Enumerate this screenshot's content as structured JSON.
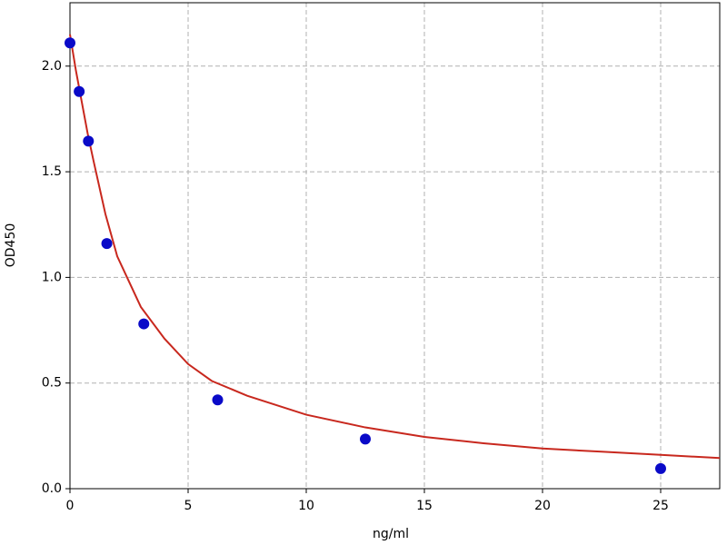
{
  "chart_data": {
    "type": "scatter",
    "x_label": "ng/ml",
    "y_label": "OD450",
    "series": [
      {
        "type": "scatter",
        "color": "#0a0ac8",
        "x": [
          0,
          0.39,
          0.78,
          1.56,
          3.125,
          6.25,
          12.5,
          25
        ],
        "values": [
          2.11,
          1.88,
          1.645,
          1.16,
          0.78,
          0.42,
          0.235,
          0.095
        ]
      },
      {
        "type": "line",
        "color": "#c8281e",
        "x": [
          0,
          0.25,
          0.5,
          0.75,
          1,
          1.5,
          2,
          2.5,
          3,
          4,
          5,
          6,
          7.5,
          10,
          12.5,
          15,
          17.5,
          20,
          22.5,
          25,
          27.5
        ],
        "values": [
          2.15,
          1.98,
          1.83,
          1.68,
          1.55,
          1.3,
          1.1,
          0.98,
          0.86,
          0.71,
          0.59,
          0.51,
          0.44,
          0.35,
          0.29,
          0.245,
          0.215,
          0.19,
          0.175,
          0.16,
          0.145
        ]
      }
    ],
    "xlim": [
      0,
      27.5
    ],
    "ylim": [
      0,
      2.3
    ],
    "xticks": [
      0,
      5,
      10,
      15,
      20,
      25
    ],
    "yticks": [
      {
        "value": 0,
        "label": "0.0"
      },
      {
        "value": 0.5,
        "label": "0.5"
      },
      {
        "value": 1,
        "label": "1.0"
      },
      {
        "value": 1.5,
        "label": "1.5"
      },
      {
        "value": 2,
        "label": "2.0"
      }
    ],
    "grid": true
  }
}
